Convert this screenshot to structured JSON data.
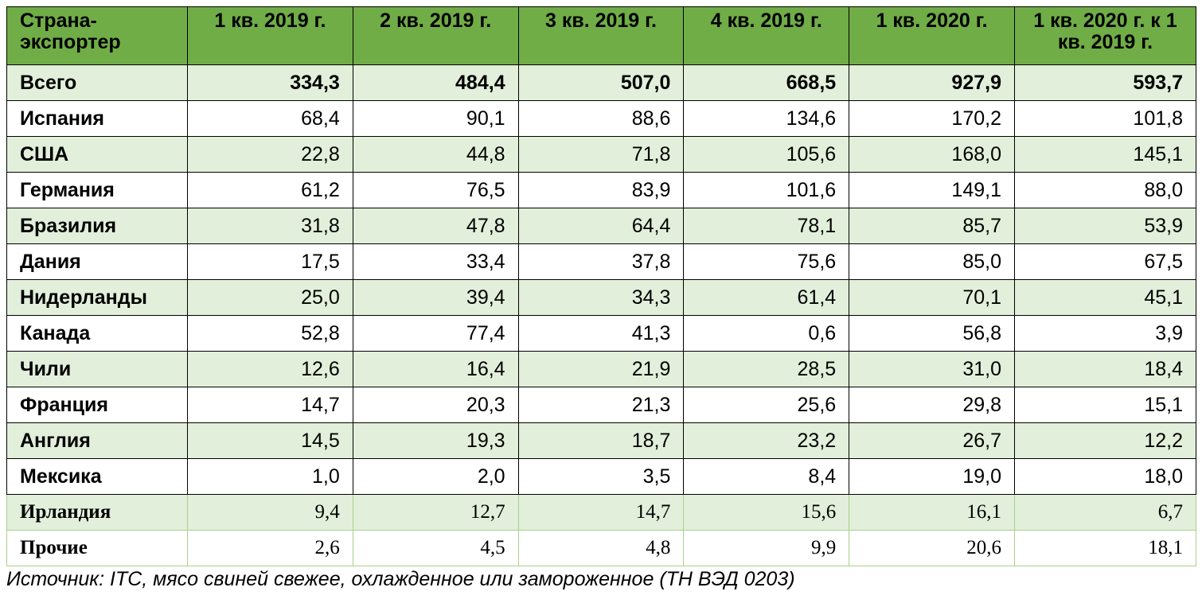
{
  "table": {
    "headers": [
      "Страна-экспортер",
      "1 кв. 2019 г.",
      "2 кв. 2019 г.",
      "3 кв. 2019 г.",
      "4 кв. 2019 г.",
      "1 кв. 2020 г.",
      "1 кв. 2020 г. к 1 кв. 2019 г."
    ],
    "rows": [
      {
        "country": "Всего",
        "values": [
          "334,3",
          "484,4",
          "507,0",
          "668,5",
          "927,9",
          "593,7"
        ]
      },
      {
        "country": "Испания",
        "values": [
          "68,4",
          "90,1",
          "88,6",
          "134,6",
          "170,2",
          "101,8"
        ]
      },
      {
        "country": "США",
        "values": [
          "22,8",
          "44,8",
          "71,8",
          "105,6",
          "168,0",
          "145,1"
        ]
      },
      {
        "country": "Германия",
        "values": [
          "61,2",
          "76,5",
          "83,9",
          "101,6",
          "149,1",
          "88,0"
        ]
      },
      {
        "country": "Бразилия",
        "values": [
          "31,8",
          "47,8",
          "64,4",
          "78,1",
          "85,7",
          "53,9"
        ]
      },
      {
        "country": "Дания",
        "values": [
          "17,5",
          "33,4",
          "37,8",
          "75,6",
          "85,0",
          "67,5"
        ]
      },
      {
        "country": "Нидерланды",
        "values": [
          "25,0",
          "39,4",
          "34,3",
          "61,4",
          "70,1",
          "45,1"
        ]
      },
      {
        "country": "Канада",
        "values": [
          "52,8",
          "77,4",
          "41,3",
          "0,6",
          "56,8",
          "3,9"
        ]
      },
      {
        "country": "Чили",
        "values": [
          "12,6",
          "16,4",
          "21,9",
          "28,5",
          "31,0",
          "18,4"
        ]
      },
      {
        "country": "Франция",
        "values": [
          "14,7",
          "20,3",
          "21,3",
          "25,6",
          "29,8",
          "15,1"
        ]
      },
      {
        "country": "Англия",
        "values": [
          "14,5",
          "19,3",
          "18,7",
          "23,2",
          "26,7",
          "12,2"
        ]
      },
      {
        "country": "Мексика",
        "values": [
          "1,0",
          "2,0",
          "3,5",
          "8,4",
          "19,0",
          "18,0"
        ]
      },
      {
        "country": "Ирландия",
        "values": [
          "9,4",
          "12,7",
          "14,7",
          "15,6",
          "16,1",
          "6,7"
        ]
      },
      {
        "country": "Прочие",
        "values": [
          "2,6",
          "4,5",
          "4,8",
          "9,9",
          "20,6",
          "18,1"
        ]
      }
    ]
  },
  "caption": "Источник: ITC, мясо свиней свежее, охлажденное или замороженное (ТН ВЭД 0203)",
  "colors": {
    "header": "#70ad47",
    "shade": "#e2efda"
  }
}
